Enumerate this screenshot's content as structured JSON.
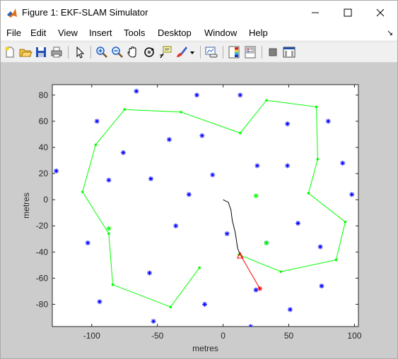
{
  "window": {
    "title": "Figure 1: EKF-SLAM Simulator"
  },
  "menu": {
    "items": [
      "File",
      "Edit",
      "View",
      "Insert",
      "Tools",
      "Desktop",
      "Window",
      "Help"
    ],
    "overflow_icon": "dock-arrow-icon"
  },
  "toolbar": {
    "icons": [
      "new-figure-icon",
      "open-file-icon",
      "save-icon",
      "print-icon",
      "pointer-icon",
      "zoom-in-icon",
      "zoom-out-icon",
      "pan-icon",
      "rotate-3d-icon",
      "data-cursor-icon",
      "brush-icon",
      "brush-dropdown-icon",
      "link-plot-icon",
      "colorbar-icon",
      "legend-icon",
      "hide-plot-tools-icon",
      "show-plot-tools-icon"
    ]
  },
  "colors": {
    "landmark": "#0000ff",
    "path": "#00ff00",
    "trajectory": "#000000",
    "robot": "#ff0000",
    "background": "#cccccc"
  },
  "chart_data": {
    "type": "scatter",
    "title": "",
    "xlabel": "metres",
    "ylabel": "metres",
    "xlim": [
      -130,
      103
    ],
    "ylim": [
      -97,
      88
    ],
    "xticks": [
      -100,
      -50,
      0,
      50,
      100
    ],
    "yticks": [
      80,
      60,
      40,
      20,
      0,
      -20,
      -40,
      -60,
      -80
    ],
    "grid": false,
    "landmarks": [
      [
        -66,
        83
      ],
      [
        -20,
        80
      ],
      [
        13,
        80
      ],
      [
        -96,
        60
      ],
      [
        49,
        58
      ],
      [
        80,
        60
      ],
      [
        -41,
        46
      ],
      [
        -16,
        49
      ],
      [
        -76,
        36
      ],
      [
        26,
        26
      ],
      [
        49,
        26
      ],
      [
        91,
        28
      ],
      [
        -127,
        22
      ],
      [
        -8,
        19
      ],
      [
        -55,
        16
      ],
      [
        -87,
        15
      ],
      [
        -26,
        4
      ],
      [
        98,
        4
      ],
      [
        -36,
        -20
      ],
      [
        57,
        -18
      ],
      [
        3,
        -26
      ],
      [
        -103,
        -33
      ],
      [
        33,
        -33
      ],
      [
        74,
        -36
      ],
      [
        -56,
        -56
      ],
      [
        -94,
        -78
      ],
      [
        -14,
        -80
      ],
      [
        75,
        -66
      ],
      [
        25,
        -69
      ],
      [
        51,
        -84
      ],
      [
        -53,
        -93
      ],
      [
        21,
        -97
      ]
    ],
    "observed_landmarks": [
      [
        25,
        3
      ],
      [
        33,
        -33
      ],
      [
        -87,
        -22
      ]
    ],
    "waypoint_path": [
      [
        -18,
        -52
      ],
      [
        -40,
        -82
      ],
      [
        -84,
        -65
      ],
      [
        -87,
        -26
      ],
      [
        -107,
        6
      ],
      [
        -97,
        42
      ],
      [
        -75,
        69
      ],
      [
        -32,
        67
      ],
      [
        13,
        51
      ],
      [
        33,
        76
      ],
      [
        71,
        71
      ],
      [
        72,
        31
      ],
      [
        65,
        5
      ],
      [
        93,
        -17
      ],
      [
        86,
        -46
      ],
      [
        44,
        -55
      ],
      [
        12,
        -42
      ]
    ],
    "trajectory": [
      [
        0,
        0
      ],
      [
        4,
        -2
      ],
      [
        6,
        -8
      ],
      [
        7,
        -16
      ],
      [
        9,
        -24
      ],
      [
        10,
        -30
      ],
      [
        11,
        -37
      ],
      [
        13,
        -42
      ]
    ],
    "robot": {
      "pose": [
        13,
        -42
      ],
      "heading_target": [
        28,
        -68
      ]
    }
  }
}
